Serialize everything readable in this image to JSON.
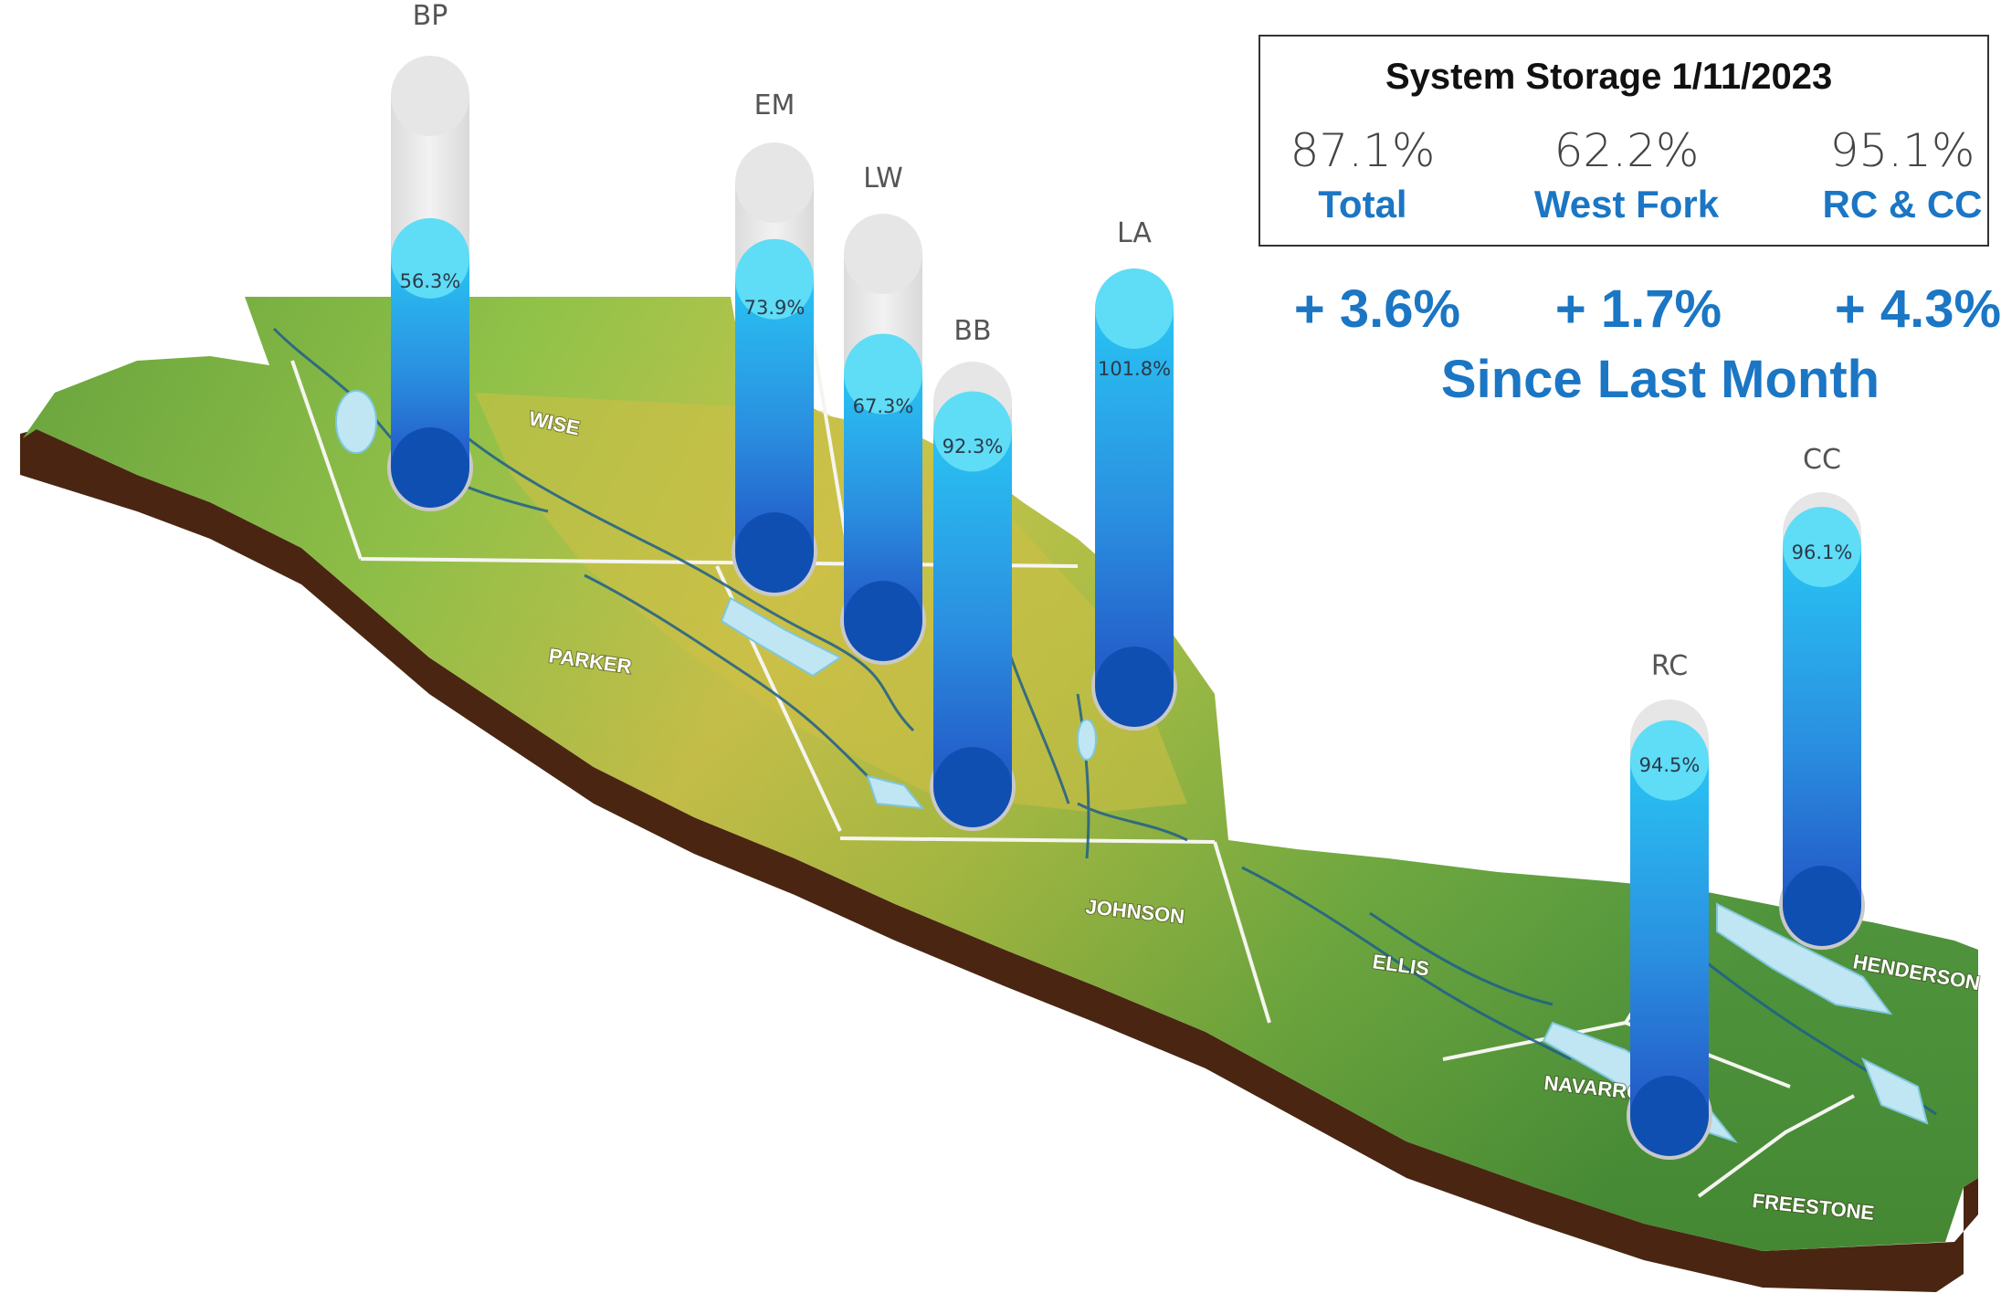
{
  "counties": [
    {
      "name": "WISE"
    },
    {
      "name": "PARKER"
    },
    {
      "name": "JOHNSON"
    },
    {
      "name": "ELLIS"
    },
    {
      "name": "NAVARRO"
    },
    {
      "name": "HENDERSON"
    },
    {
      "name": "FREESTONE"
    }
  ],
  "reservoirs": [
    {
      "abbr": "BP",
      "storage_label": "56.3%",
      "fill_fraction": 0.563
    },
    {
      "abbr": "EM",
      "storage_label": "73.9%",
      "fill_fraction": 0.739
    },
    {
      "abbr": "LW",
      "storage_label": "67.3%",
      "fill_fraction": 0.673
    },
    {
      "abbr": "BB",
      "storage_label": "92.3%",
      "fill_fraction": 0.923
    },
    {
      "abbr": "LA",
      "storage_label": "101.8%",
      "fill_fraction": 1.0
    },
    {
      "abbr": "RC",
      "storage_label": "94.5%",
      "fill_fraction": 0.945
    },
    {
      "abbr": "CC",
      "storage_label": "96.1%",
      "fill_fraction": 0.961
    }
  ],
  "system_storage": {
    "title": "System Storage 1/11/2023",
    "stats": [
      {
        "value": "87.1%",
        "label": "Total"
      },
      {
        "value": "62.2%",
        "label": "West Fork"
      },
      {
        "value": "95.1%",
        "label": "RC & CC"
      }
    ]
  },
  "monthly_change": {
    "values": [
      "+ 3.6%",
      "+ 1.7%",
      "+ 4.3%"
    ],
    "caption": "Since Last Month"
  },
  "colors": {
    "tube_empty": "#e6e6e6",
    "tube_cap": "#5fdcf6",
    "tube_base": "#0f4fb2",
    "accent_text": "#1b76c4",
    "map_green": "#7bb63a",
    "map_yellow": "#d6c43f",
    "map_base": "#4a2612"
  }
}
